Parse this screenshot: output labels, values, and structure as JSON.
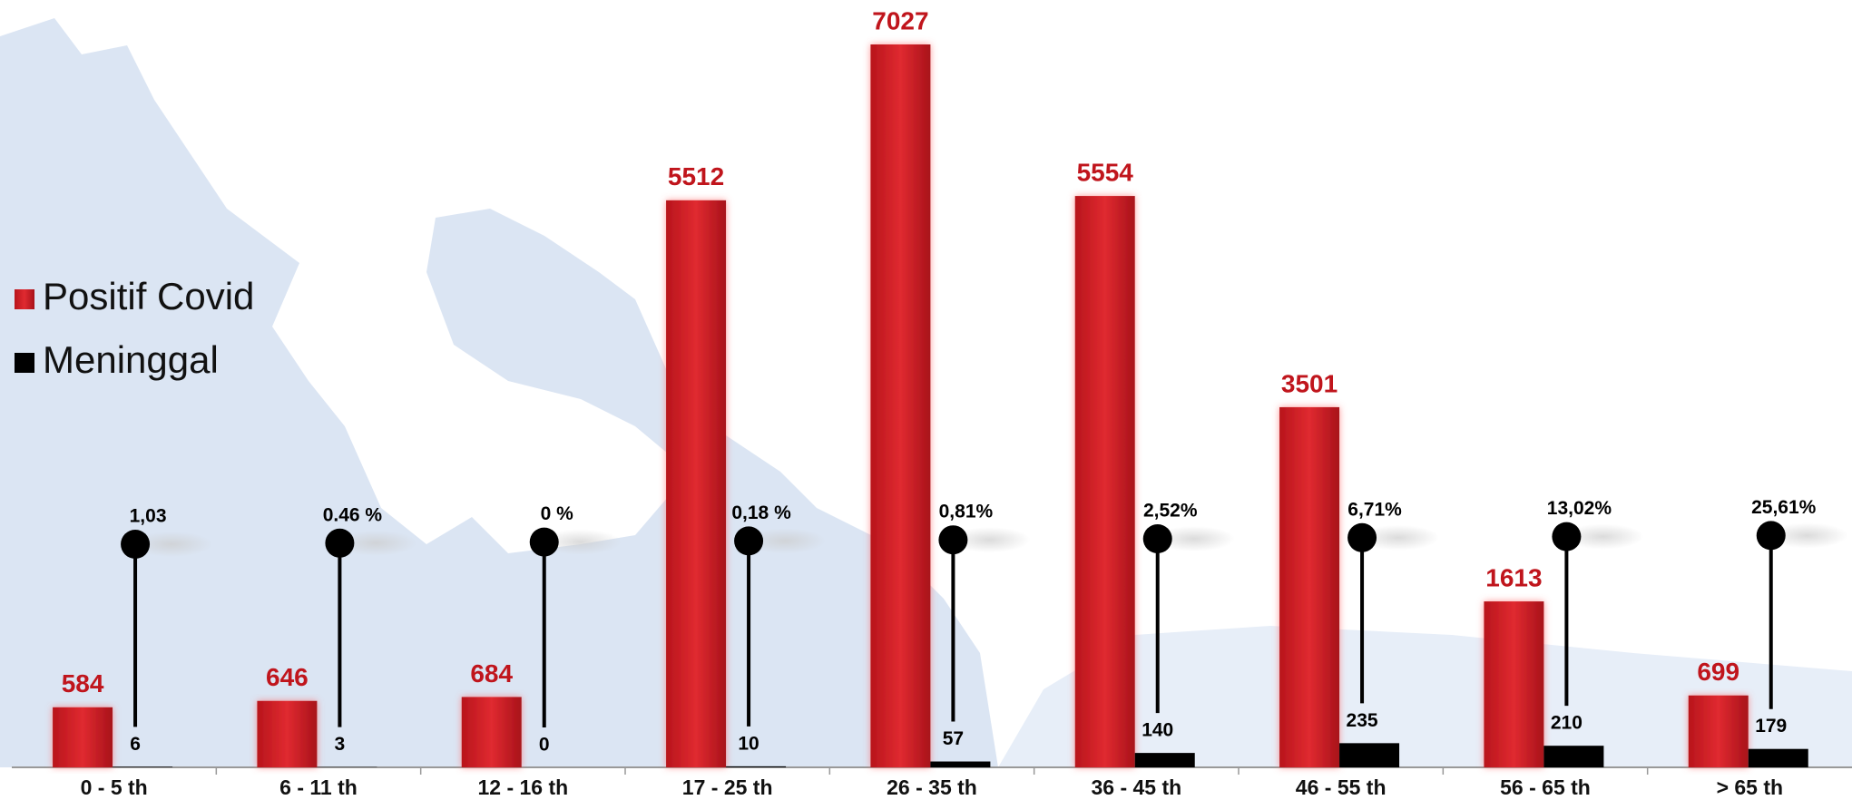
{
  "chart_data": {
    "type": "bar",
    "categories": [
      "0 - 5 th",
      "6 - 11 th",
      "12 - 16 th",
      "17 - 25 th",
      "26 - 35 th",
      "36 - 45 th",
      "46 - 55 th",
      "56 - 65 th",
      "> 65 th"
    ],
    "series": [
      {
        "name": "Positif Covid",
        "color": "#d42027",
        "values": [
          584,
          646,
          684,
          5512,
          7027,
          5554,
          3501,
          1613,
          699
        ]
      },
      {
        "name": "Meninggal",
        "color": "#000000",
        "values": [
          6,
          3,
          0,
          10,
          57,
          140,
          235,
          210,
          179
        ]
      }
    ],
    "annotations": [
      "1,03",
      "0.46 %",
      "0 %",
      "0,18 %",
      "0,81%",
      "2,52%",
      "6,71%",
      "13,02%",
      "25,61%"
    ]
  }
}
